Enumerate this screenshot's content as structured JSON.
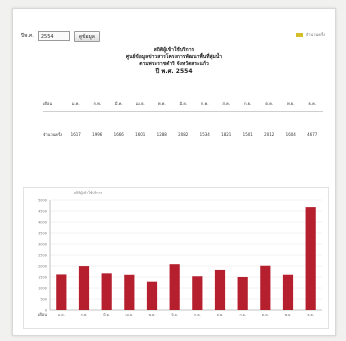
{
  "filter": {
    "label": "ปีพ.ศ.",
    "selected_year": "2554",
    "button_label": "ดูข้อมูล"
  },
  "legend": {
    "label": "จำนวนครั้ง",
    "color": "#d4bf2a"
  },
  "titles": [
    "สถิติผู้เข้าใช้บริการ",
    "ศูนย์ข้อมูลข่าวสารโครงการพัฒนาพื้นที่ลุ่มน้ำ",
    "ตามพระราชดำริ จังหวัดสระแก้ว"
  ],
  "year_heading": "ปี พ.ศ. 2554",
  "table": {
    "row_header_label": "เดือน",
    "row_label": "จำนวนครั้ง",
    "months": [
      "ม.ค.",
      "ก.พ.",
      "มี.ค.",
      "เม.ย.",
      "พ.ค.",
      "มิ.ย.",
      "ก.ค.",
      "ส.ค.",
      "ก.ย.",
      "ต.ค.",
      "พ.ย.",
      "ธ.ค."
    ],
    "values": [
      "1617",
      "1996",
      "1666",
      "1601",
      "1288",
      "2082",
      "1534",
      "1821",
      "1501",
      "2012",
      "1604",
      "4677"
    ]
  },
  "chart_caption": "สถิติผู้เข้าใช้บริการ",
  "chart_data": {
    "type": "bar",
    "categories": [
      "ม.ค.",
      "ก.พ.",
      "มี.ค.",
      "เม.ย.",
      "พ.ค.",
      "มิ.ย.",
      "ก.ค.",
      "ส.ค.",
      "ก.ย.",
      "ต.ค.",
      "พ.ย.",
      "ธ.ค."
    ],
    "values": [
      1617,
      1996,
      1666,
      1601,
      1288,
      2082,
      1534,
      1821,
      1501,
      2012,
      1604,
      4677
    ],
    "xlabel": "เดือน",
    "ylabel": "",
    "ylim": [
      0,
      5000
    ],
    "yticks": [
      0,
      500,
      1000,
      1500,
      2000,
      2500,
      3000,
      3500,
      4000,
      4500,
      5000
    ],
    "grid": true,
    "bar_color": "#b51f2e"
  }
}
